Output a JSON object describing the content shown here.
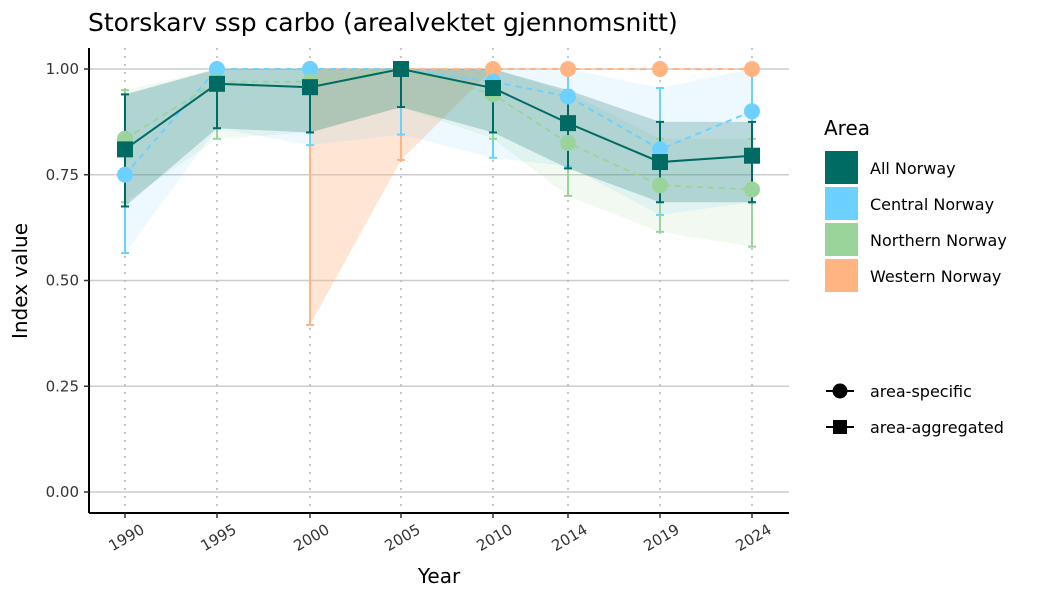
{
  "chart_data": {
    "type": "line",
    "title": "Storskarv ssp carbo (arealvektet gjennomsnitt)",
    "xlabel": "Year",
    "ylabel": "Index value",
    "categories": [
      "1990",
      "1995",
      "2000",
      "2005",
      "2010",
      "2014",
      "2019",
      "2024"
    ],
    "ylim": [
      0,
      1.05
    ],
    "yticks": [
      0.0,
      0.25,
      0.5,
      0.75,
      1.0
    ],
    "ytick_labels": [
      "0.00",
      "0.25",
      "0.50",
      "0.75",
      "1.00"
    ],
    "grid": "horizontal major lines, vertical dotted lines at each year",
    "legend_position": "right",
    "legend_title": "Area",
    "series": [
      {
        "name": "All Norway",
        "color": "#006B63",
        "marker": "square",
        "line": "solid",
        "values": [
          0.81,
          0.965,
          0.957,
          1.0,
          0.955,
          0.872,
          0.78,
          0.795
        ],
        "lower": [
          0.675,
          0.86,
          0.85,
          0.91,
          0.85,
          0.765,
          0.685,
          0.685
        ],
        "upper": [
          0.94,
          1.0,
          1.0,
          1.0,
          1.0,
          0.95,
          0.875,
          0.875
        ]
      },
      {
        "name": "Central Norway",
        "color": "#6DD1FF",
        "marker": "circle",
        "line": "dashed",
        "values": [
          0.75,
          1.0,
          1.0,
          1.0,
          0.97,
          0.935,
          0.81,
          0.9
        ],
        "lower": [
          0.565,
          0.86,
          0.82,
          0.845,
          0.79,
          0.77,
          0.655,
          0.685
        ],
        "upper": [
          0.94,
          1.0,
          1.0,
          1.0,
          1.0,
          1.0,
          0.955,
          1.0
        ]
      },
      {
        "name": "Northern Norway",
        "color": "#9BD49B",
        "marker": "circle",
        "line": "dashed",
        "values": [
          0.835,
          0.97,
          0.97,
          1.0,
          0.94,
          0.825,
          0.725,
          0.715
        ],
        "lower": [
          0.685,
          0.835,
          0.85,
          0.91,
          0.835,
          0.7,
          0.615,
          0.58
        ],
        "upper": [
          0.95,
          1.0,
          1.0,
          1.0,
          1.0,
          0.945,
          0.835,
          0.835
        ]
      },
      {
        "name": "Western Norway",
        "color": "#FFB482",
        "marker": "circle",
        "line": "dashed",
        "values": [
          null,
          null,
          1.0,
          1.0,
          1.0,
          1.0,
          1.0,
          1.0
        ],
        "lower": [
          null,
          null,
          0.395,
          0.785,
          1.0,
          1.0,
          1.0,
          1.0
        ],
        "upper": [
          null,
          null,
          1.0,
          1.0,
          1.0,
          1.0,
          1.0,
          1.0
        ]
      }
    ],
    "shape_legend": [
      {
        "label": "area-specific",
        "marker": "circle"
      },
      {
        "label": "area-aggregated",
        "marker": "square"
      }
    ]
  }
}
